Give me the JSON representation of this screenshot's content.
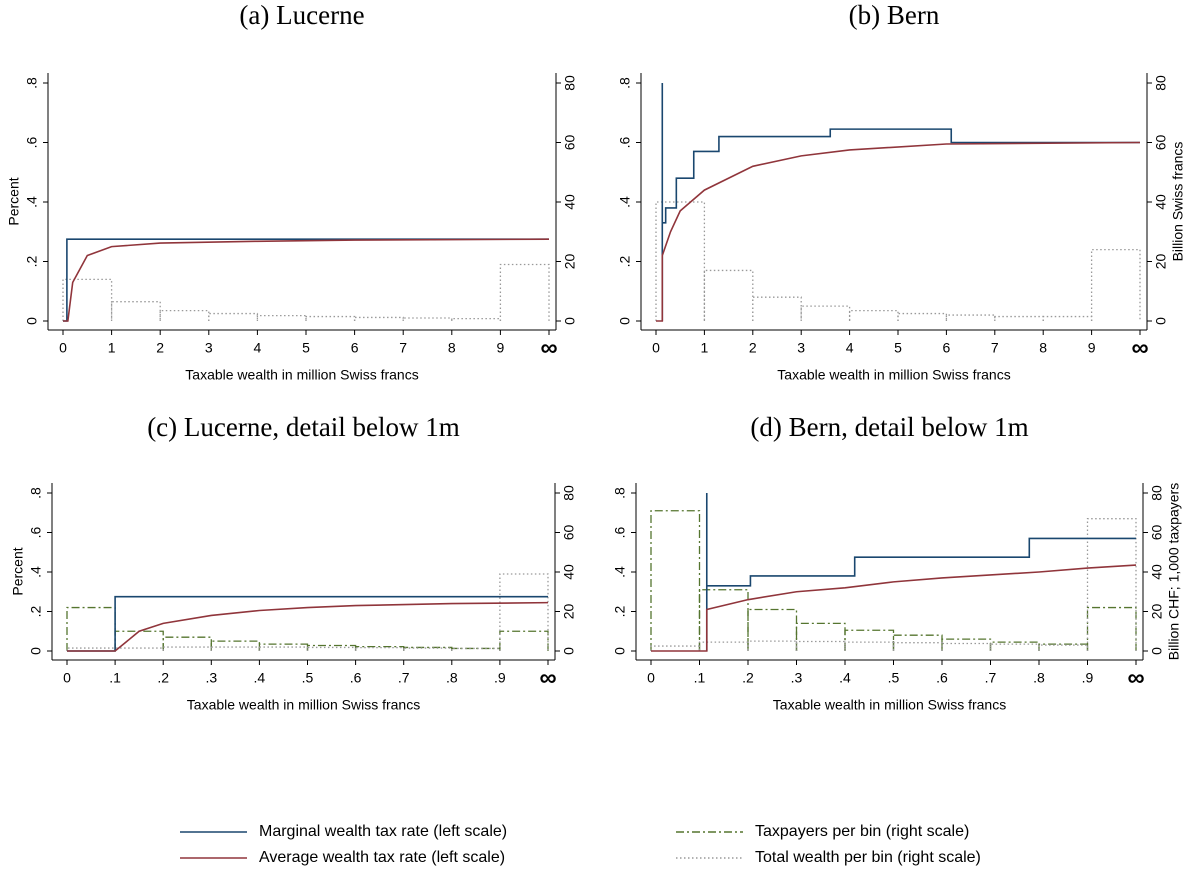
{
  "chart_data": [
    {
      "type": "line",
      "title": "(a) Lucerne",
      "xlabel": "Taxable wealth in million Swiss francs",
      "ylabel": "Percent",
      "xlim": [
        0,
        10
      ],
      "xticks": [
        0,
        1,
        2,
        3,
        4,
        5,
        6,
        7,
        8,
        9,
        {
          "value": 10,
          "label": "∞"
        }
      ],
      "ylim": [
        0,
        0.8
      ],
      "yticks": [
        0,
        {
          "value": 0.2,
          "label": ".2"
        },
        {
          "value": 0.4,
          "label": ".4"
        },
        {
          "value": 0.6,
          "label": ".6"
        },
        {
          "value": 0.8,
          "label": ".8"
        }
      ],
      "y2lim": [
        0,
        80
      ],
      "y2ticks": [
        0,
        20,
        40,
        60,
        80
      ],
      "grid": false,
      "series": [
        {
          "color": "#1a476f",
          "linestyle": "solid",
          "x": [
            0,
            0.08,
            0.08,
            10
          ],
          "values": [
            0,
            0,
            0.275,
            0.275
          ]
        },
        {
          "color": "#90353b",
          "linestyle": "solid",
          "x": [
            0,
            0.1,
            0.2,
            0.5,
            1,
            2,
            4,
            6,
            10
          ],
          "values": [
            0,
            0,
            0.13,
            0.22,
            0.25,
            0.262,
            0.268,
            0.272,
            0.275
          ]
        },
        {
          "color": "#999999",
          "linestyle": "dotted",
          "axis": "y2",
          "bins": [
            0,
            1,
            2,
            3,
            4,
            5,
            6,
            7,
            8,
            9,
            10
          ],
          "values": [
            14,
            6.5,
            3.5,
            2.5,
            1.8,
            1.5,
            1.2,
            1,
            0.8,
            19
          ]
        }
      ]
    },
    {
      "type": "line",
      "title": "(b) Bern",
      "xlabel": "Taxable wealth in million Swiss francs",
      "y2label": "Billion Swiss francs",
      "xlim": [
        0,
        10
      ],
      "xticks": [
        0,
        1,
        2,
        3,
        4,
        5,
        6,
        7,
        8,
        9,
        {
          "value": 10,
          "label": "∞"
        }
      ],
      "ylim": [
        0,
        0.8
      ],
      "yticks": [
        0,
        {
          "value": 0.2,
          "label": ".2"
        },
        {
          "value": 0.4,
          "label": ".4"
        },
        {
          "value": 0.6,
          "label": ".6"
        },
        {
          "value": 0.8,
          "label": ".8"
        }
      ],
      "y2lim": [
        0,
        80
      ],
      "y2ticks": [
        0,
        20,
        40,
        60,
        80
      ],
      "grid": false,
      "series": [
        {
          "color": "#1a476f",
          "linestyle": "solid",
          "x": [
            0.13,
            0.13,
            0.13,
            0.2,
            0.2,
            0.42,
            0.42,
            0.78,
            0.78,
            1.3,
            1.3,
            3.6,
            3.6,
            6.1,
            6.1,
            10
          ],
          "values": [
            0,
            0.8,
            0.33,
            0.33,
            0.38,
            0.38,
            0.48,
            0.48,
            0.57,
            0.57,
            0.62,
            0.62,
            0.645,
            0.645,
            0.6,
            0.6
          ]
        },
        {
          "color": "#90353b",
          "linestyle": "solid",
          "x": [
            0,
            0.13,
            0.13,
            0.3,
            0.5,
            1,
            2,
            3,
            4,
            6,
            10
          ],
          "values": [
            0,
            0,
            0.22,
            0.3,
            0.37,
            0.44,
            0.52,
            0.555,
            0.575,
            0.595,
            0.6
          ]
        },
        {
          "color": "#999999",
          "linestyle": "dotted",
          "axis": "y2",
          "bins": [
            0,
            1,
            2,
            3,
            4,
            5,
            6,
            7,
            8,
            9,
            10
          ],
          "values": [
            40,
            17,
            8,
            5,
            3.5,
            2.5,
            2,
            1.5,
            1.5,
            24
          ]
        }
      ]
    },
    {
      "type": "line",
      "title": "(c) Lucerne, detail below 1m",
      "xlabel": "Taxable wealth in million Swiss francs",
      "ylabel": "Percent",
      "xlim": [
        0,
        1
      ],
      "xticks": [
        0,
        {
          "value": 0.1,
          "label": ".1"
        },
        {
          "value": 0.2,
          "label": ".2"
        },
        {
          "value": 0.3,
          "label": ".3"
        },
        {
          "value": 0.4,
          "label": ".4"
        },
        {
          "value": 0.5,
          "label": ".5"
        },
        {
          "value": 0.6,
          "label": ".6"
        },
        {
          "value": 0.7,
          "label": ".7"
        },
        {
          "value": 0.8,
          "label": ".8"
        },
        {
          "value": 0.9,
          "label": ".9"
        },
        {
          "value": 1,
          "label": "∞"
        }
      ],
      "ylim": [
        0,
        0.8
      ],
      "yticks": [
        0,
        {
          "value": 0.2,
          "label": ".2"
        },
        {
          "value": 0.4,
          "label": ".4"
        },
        {
          "value": 0.6,
          "label": ".6"
        },
        {
          "value": 0.8,
          "label": ".8"
        }
      ],
      "y2lim": [
        0,
        80
      ],
      "y2ticks": [
        0,
        20,
        40,
        60,
        80
      ],
      "grid": false,
      "series": [
        {
          "color": "#1a476f",
          "linestyle": "solid",
          "x": [
            0,
            0.1,
            0.1,
            1
          ],
          "values": [
            0,
            0,
            0.275,
            0.275
          ]
        },
        {
          "color": "#90353b",
          "linestyle": "solid",
          "x": [
            0,
            0.1,
            0.15,
            0.2,
            0.3,
            0.4,
            0.5,
            0.6,
            0.8,
            1
          ],
          "values": [
            0,
            0,
            0.1,
            0.14,
            0.18,
            0.205,
            0.22,
            0.23,
            0.24,
            0.245
          ]
        },
        {
          "color": "#55752f",
          "linestyle": "dashdot",
          "axis": "y2",
          "bins": [
            0,
            0.1,
            0.2,
            0.3,
            0.4,
            0.5,
            0.6,
            0.7,
            0.8,
            0.9,
            1
          ],
          "values": [
            22,
            10,
            7,
            5,
            3.5,
            2.8,
            2.2,
            1.8,
            1.3,
            10
          ]
        },
        {
          "color": "#999999",
          "linestyle": "dotted",
          "axis": "y2",
          "bins": [
            0,
            0.1,
            0.2,
            0.3,
            0.4,
            0.5,
            0.6,
            0.7,
            0.8,
            0.9,
            1
          ],
          "values": [
            1.5,
            1.5,
            2,
            2,
            2,
            1.8,
            1.7,
            1.5,
            1.3,
            39
          ]
        }
      ]
    },
    {
      "type": "line",
      "title": "(d) Bern, detail below 1m",
      "xlabel": "Taxable wealth in million Swiss francs",
      "y2label": "Billion CHF; 1,000 taxpayers",
      "xlim": [
        0,
        1
      ],
      "xticks": [
        0,
        {
          "value": 0.1,
          "label": ".1"
        },
        {
          "value": 0.2,
          "label": ".2"
        },
        {
          "value": 0.3,
          "label": ".3"
        },
        {
          "value": 0.4,
          "label": ".4"
        },
        {
          "value": 0.5,
          "label": ".5"
        },
        {
          "value": 0.6,
          "label": ".6"
        },
        {
          "value": 0.7,
          "label": ".7"
        },
        {
          "value": 0.8,
          "label": ".8"
        },
        {
          "value": 0.9,
          "label": ".9"
        },
        {
          "value": 1,
          "label": "∞"
        }
      ],
      "ylim": [
        0,
        0.8
      ],
      "yticks": [
        0,
        {
          "value": 0.2,
          "label": ".2"
        },
        {
          "value": 0.4,
          "label": ".4"
        },
        {
          "value": 0.6,
          "label": ".6"
        },
        {
          "value": 0.8,
          "label": ".8"
        }
      ],
      "y2lim": [
        0,
        80
      ],
      "y2ticks": [
        0,
        20,
        40,
        60,
        80
      ],
      "grid": false,
      "series": [
        {
          "name": "Marginal wealth tax rate (left scale)",
          "color": "#1a476f",
          "linestyle": "solid",
          "x": [
            0.115,
            0.115,
            0.115,
            0.205,
            0.205,
            0.42,
            0.42,
            0.78,
            0.78,
            1
          ],
          "values": [
            0,
            0.8,
            0.33,
            0.33,
            0.38,
            0.38,
            0.475,
            0.475,
            0.57,
            0.57
          ]
        },
        {
          "name": "Average wealth tax rate (left scale)",
          "color": "#90353b",
          "linestyle": "solid",
          "x": [
            0,
            0.115,
            0.115,
            0.2,
            0.3,
            0.4,
            0.5,
            0.6,
            0.7,
            0.8,
            0.9,
            1
          ],
          "values": [
            0,
            0,
            0.21,
            0.26,
            0.3,
            0.32,
            0.35,
            0.37,
            0.385,
            0.4,
            0.42,
            0.435
          ]
        },
        {
          "name": "Taxpayers per bin (right scale)",
          "color": "#55752f",
          "linestyle": "dashdot",
          "axis": "y2",
          "bins": [
            0,
            0.1,
            0.2,
            0.3,
            0.4,
            0.5,
            0.6,
            0.7,
            0.8,
            0.9,
            1
          ],
          "values": [
            71,
            31,
            21,
            14,
            10.5,
            8,
            6,
            4.5,
            3.5,
            22
          ]
        },
        {
          "name": "Total wealth per bin (right scale)",
          "color": "#999999",
          "linestyle": "dotted",
          "axis": "y2",
          "bins": [
            0,
            0.1,
            0.2,
            0.3,
            0.4,
            0.5,
            0.6,
            0.7,
            0.8,
            0.9,
            1
          ],
          "values": [
            2.5,
            4.5,
            5,
            4.8,
            4.5,
            4.2,
            3.8,
            3.5,
            3,
            67
          ]
        }
      ]
    }
  ]
}
